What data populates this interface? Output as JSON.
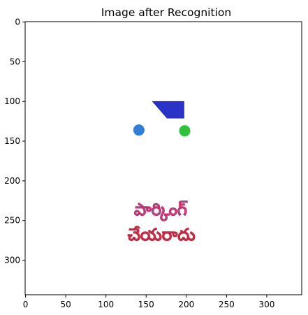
{
  "chart_data": {
    "type": "image",
    "title": "Image after Recognition",
    "xlabel": "",
    "ylabel": "",
    "xlim": [
      -0.5,
      343.5
    ],
    "ylim": [
      343.5,
      -0.5
    ],
    "y_inverted": true,
    "grid": false,
    "x_ticks": [
      0,
      50,
      100,
      150,
      200,
      250,
      300
    ],
    "y_ticks": [
      0,
      50,
      100,
      150,
      200,
      250,
      300
    ],
    "objects": [
      {
        "name": "blue-trapezoid",
        "shape": "polygon",
        "color": "#2a32c8",
        "points": [
          [
            158,
            100
          ],
          [
            197,
            100
          ],
          [
            197,
            121
          ],
          [
            176,
            121
          ]
        ]
      },
      {
        "name": "blue-dot",
        "shape": "circle",
        "color": "#2f7fd4",
        "cx": 141,
        "cy": 136,
        "r": 7
      },
      {
        "name": "green-dot",
        "shape": "circle",
        "color": "#2ec23a",
        "cx": 198,
        "cy": 137,
        "r": 7
      },
      {
        "name": "text-line-1",
        "shape": "text",
        "text": "పార్కింగ్",
        "x": 168,
        "y": 243,
        "colors": [
          "#22a7c9",
          "#d89a2a",
          "#cf2b6b"
        ]
      },
      {
        "name": "text-line-2",
        "shape": "text",
        "text": "చేయరాదు",
        "x": 169,
        "y": 275,
        "colors": [
          "#d03a2a",
          "#c02a4a"
        ]
      }
    ]
  }
}
